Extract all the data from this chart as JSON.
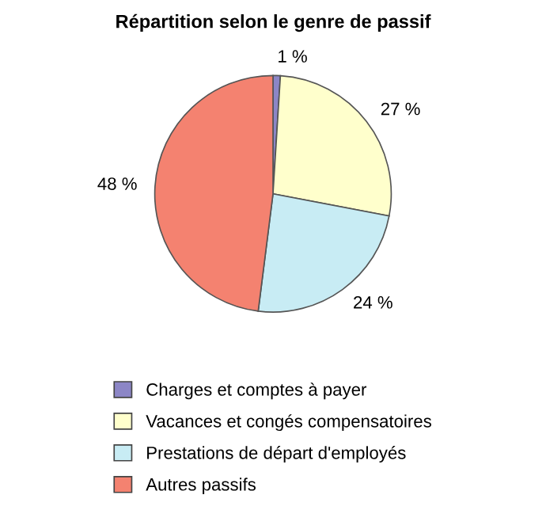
{
  "chart_data": {
    "type": "pie",
    "title": "Répartition selon le genre de passif",
    "categories": [
      "Charges et comptes à payer",
      "Vacances et congés compensatoires",
      "Prestations de départ d'employés",
      "Autres passifs"
    ],
    "values": [
      1,
      27,
      24,
      48
    ],
    "value_labels": [
      "1 %",
      "27 %",
      "24 %",
      "48 %"
    ],
    "colors": [
      "#8c86c6",
      "#ffffcc",
      "#c8ecf4",
      "#f48270"
    ],
    "legend": "bottom"
  }
}
